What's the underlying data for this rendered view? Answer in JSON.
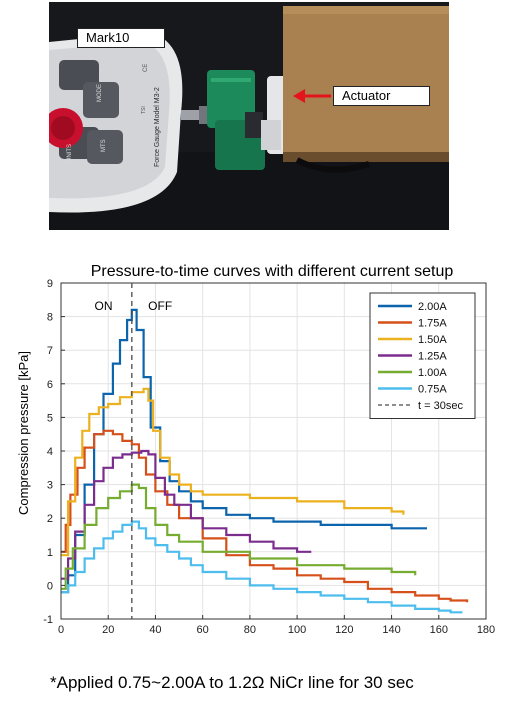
{
  "photo": {
    "labels": {
      "mark10": "Mark10",
      "actuator": "Actuator"
    },
    "gauge_text": {
      "brand_line": "Force Gauge Model M3-2",
      "mode_button": "MODE",
      "units_button": "UNITS",
      "mts_button": "MTS",
      "zero_button": "ZERO",
      "ce_mark": "CE",
      "tsi_mark": "TSI"
    },
    "colors": {
      "arrow": "#e4141b"
    }
  },
  "chart_data": {
    "type": "line",
    "title": "Pressure-to-time curves with different current setup",
    "xlabel": "",
    "ylabel": "Compression pressure [kPa]",
    "xlim": [
      0,
      180
    ],
    "ylim": [
      -1,
      9
    ],
    "xticks": [
      0,
      20,
      40,
      60,
      80,
      100,
      120,
      140,
      160,
      180
    ],
    "yticks": [
      -1,
      0,
      1,
      2,
      3,
      4,
      5,
      6,
      7,
      8,
      9
    ],
    "grid": true,
    "legend_position": "top-right",
    "annotations": [
      {
        "text": "ON",
        "x": 18,
        "y": 8.2
      },
      {
        "text": "OFF",
        "x": 42,
        "y": 8.2
      }
    ],
    "vline": {
      "x": 30,
      "name": "t = 30sec",
      "color": "#4a4a4a"
    },
    "series": [
      {
        "name": "2.00A",
        "color": "#0b64ac",
        "x": [
          0,
          3,
          6,
          10,
          14,
          18,
          22,
          25,
          28,
          30,
          32,
          35,
          38,
          42,
          46,
          50,
          55,
          60,
          70,
          80,
          90,
          100,
          110,
          120,
          130,
          140,
          150,
          155
        ],
        "y": [
          -0.2,
          0.3,
          1.5,
          3.0,
          4.5,
          5.7,
          6.6,
          7.3,
          7.9,
          8.2,
          7.6,
          6.2,
          4.7,
          3.7,
          3.1,
          2.8,
          2.5,
          2.3,
          2.1,
          2.0,
          1.9,
          1.9,
          1.8,
          1.8,
          1.8,
          1.7,
          1.7,
          1.7
        ]
      },
      {
        "name": "1.75A",
        "color": "#d6501b",
        "x": [
          0,
          2,
          4,
          7,
          10,
          14,
          18,
          22,
          26,
          30,
          33,
          36,
          40,
          45,
          50,
          60,
          70,
          80,
          90,
          100,
          110,
          120,
          130,
          140,
          150,
          160,
          165,
          172
        ],
        "y": [
          1.0,
          1.8,
          2.7,
          3.5,
          4.1,
          4.5,
          4.6,
          4.5,
          4.3,
          4.2,
          3.8,
          3.3,
          2.8,
          2.4,
          2.0,
          1.4,
          0.9,
          0.6,
          0.5,
          0.3,
          0.2,
          0.1,
          -0.1,
          -0.2,
          -0.3,
          -0.4,
          -0.45,
          -0.5
        ]
      },
      {
        "name": "1.50A",
        "color": "#ecb11f",
        "x": [
          0,
          3,
          6,
          9,
          12,
          16,
          20,
          25,
          30,
          35,
          37,
          39,
          42,
          46,
          50,
          55,
          60,
          80,
          100,
          120,
          140,
          145
        ],
        "y": [
          0.9,
          2.5,
          3.8,
          4.6,
          5.1,
          5.3,
          5.4,
          5.6,
          5.75,
          5.85,
          5.5,
          4.6,
          3.8,
          3.3,
          3.0,
          2.8,
          2.7,
          2.6,
          2.5,
          2.3,
          2.2,
          2.1
        ]
      },
      {
        "name": "1.25A",
        "color": "#7b2d8e",
        "x": [
          0,
          3,
          6,
          10,
          14,
          18,
          22,
          26,
          30,
          34,
          37,
          40,
          44,
          48,
          55,
          60,
          70,
          80,
          90,
          100,
          106
        ],
        "y": [
          0.2,
          0.8,
          1.6,
          2.4,
          3.1,
          3.5,
          3.8,
          3.9,
          3.95,
          4.0,
          3.9,
          3.2,
          2.7,
          2.4,
          2.0,
          1.7,
          1.5,
          1.3,
          1.1,
          1.0,
          1.0
        ]
      },
      {
        "name": "1.00A",
        "color": "#76ac30",
        "x": [
          0,
          2,
          5,
          10,
          15,
          20,
          25,
          30,
          33,
          36,
          40,
          45,
          50,
          60,
          80,
          100,
          120,
          140,
          150
        ],
        "y": [
          -0.1,
          0.5,
          1.1,
          1.8,
          2.3,
          2.6,
          2.8,
          3.0,
          2.9,
          2.3,
          1.8,
          1.5,
          1.3,
          1.0,
          0.8,
          0.6,
          0.5,
          0.4,
          0.3
        ]
      },
      {
        "name": "0.75A",
        "color": "#4dbdee",
        "x": [
          0,
          3,
          6,
          10,
          14,
          18,
          22,
          26,
          30,
          33,
          36,
          40,
          45,
          50,
          55,
          60,
          70,
          80,
          90,
          100,
          110,
          120,
          130,
          140,
          150,
          160,
          165,
          170
        ],
        "y": [
          -0.2,
          0.0,
          0.4,
          0.8,
          1.1,
          1.4,
          1.6,
          1.8,
          1.9,
          1.7,
          1.4,
          1.2,
          1.0,
          0.8,
          0.6,
          0.4,
          0.2,
          0.0,
          -0.1,
          -0.2,
          -0.3,
          -0.4,
          -0.5,
          -0.6,
          -0.7,
          -0.75,
          -0.8,
          -0.8
        ]
      }
    ]
  },
  "footnote": "*Applied 0.75~2.00A to 1.2Ω NiCr line for 30 sec"
}
